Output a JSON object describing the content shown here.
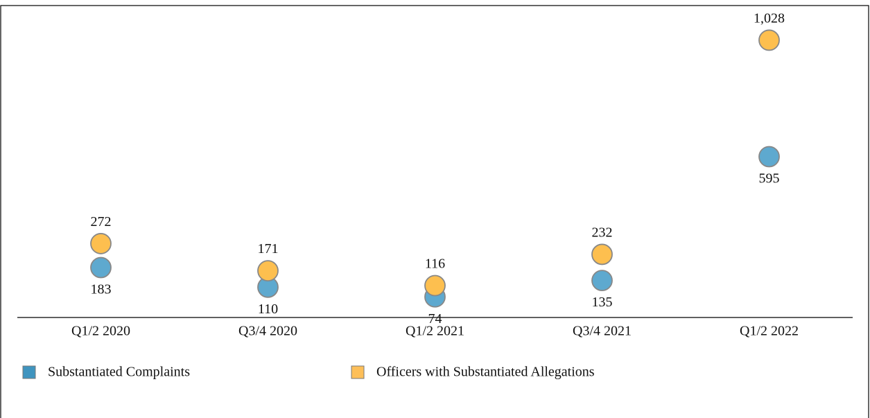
{
  "chart_data": {
    "type": "dot",
    "categories": [
      "Q1/2 2020",
      "Q3/4 2020",
      "Q1/2 2021",
      "Q3/4 2021",
      "Q1/2 2022"
    ],
    "series": [
      {
        "name": "Substantiated Complaints",
        "color": "#5ea9cf",
        "values": [
          183,
          110,
          74,
          135,
          595
        ]
      },
      {
        "name": "Officers with Substantiated Allegations",
        "color": "#fdbf4f",
        "values": [
          272,
          171,
          116,
          232,
          1028
        ],
        "value_labels": [
          "272",
          "171",
          "116",
          "232",
          "1,028"
        ]
      }
    ],
    "ylim": [
      0,
      1100
    ]
  }
}
